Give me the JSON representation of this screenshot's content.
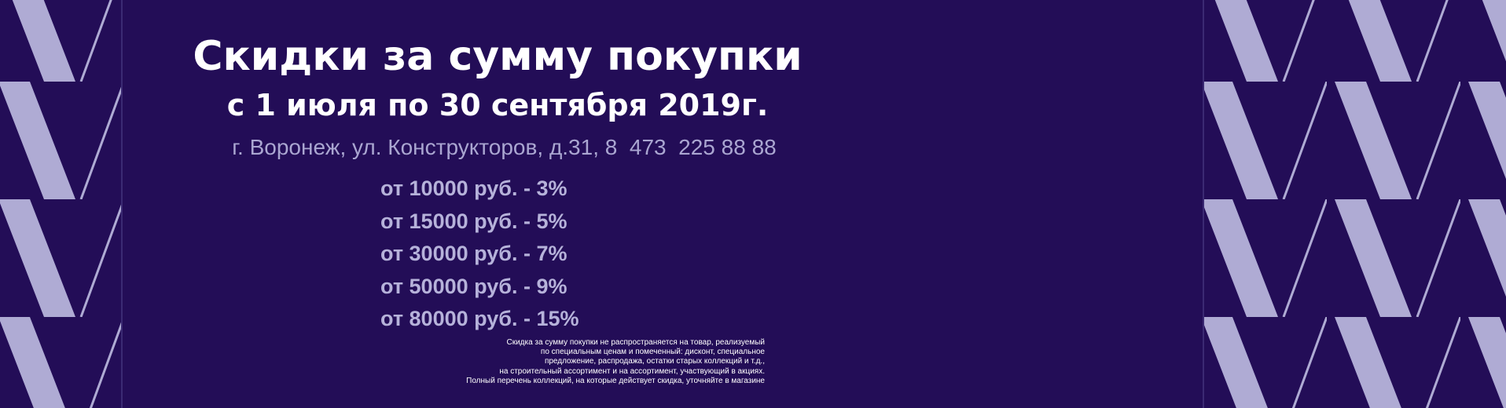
{
  "banner": {
    "title": "Скидки за сумму покупки",
    "period": "с 1 июля по 30 сентября 2019г.",
    "address": "г. Воронеж, ул. Конструкторов, д.31, 8  473  225 88 88",
    "discounts": [
      "от 10000 руб. - 3%",
      "от 15000 руб. - 5%",
      "от 30000 руб. - 7%",
      "от 50000 руб. - 9%",
      "от 80000 руб. - 15%"
    ],
    "footnote": [
      "Скидка за сумму покупки не распространяется на товар, реализуемый",
      "по специальным ценам и помеченный: дисконт, специальное",
      "предложение, распродажа, остатки старых коллекций и т.д.,",
      "на строительный ассортимент и на ассортимент, участвующий в акциях.",
      "Полный перечень коллекций, на которые действует скидка, уточняйте в магазине"
    ]
  }
}
